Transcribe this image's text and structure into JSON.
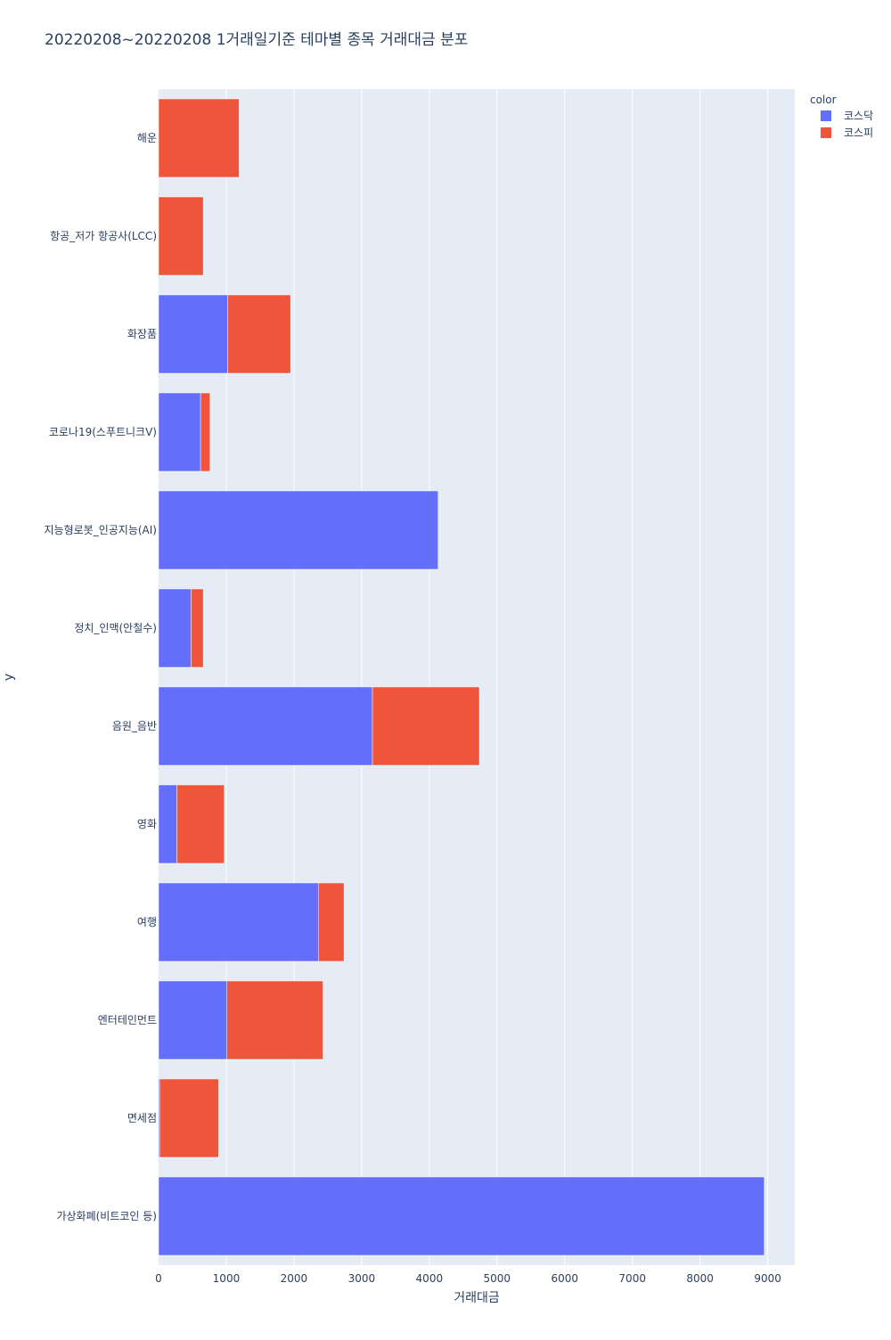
{
  "chart_data": {
    "type": "bar",
    "orientation": "horizontal",
    "barmode": "stack",
    "title": "20220208~20220208 1거래일기준 테마별 종목 거래대금 분포",
    "xlabel": "거래대금",
    "ylabel": "y",
    "xlim": [
      0,
      9400
    ],
    "x_ticks": [
      "0",
      "1000",
      "2000",
      "3000",
      "4000",
      "5000",
      "6000",
      "7000",
      "8000",
      "9000"
    ],
    "categories": [
      "해운",
      "항공_저가 항공사(LCC)",
      "화장품",
      "코로나19(스푸트니크V)",
      "지능형로봇_인공지능(AI)",
      "정치_인맥(안철수)",
      "음원_음반",
      "영화",
      "여행",
      "엔터테인먼트",
      "면세점",
      "가상화폐(비트코인 등)"
    ],
    "series": [
      {
        "name": "코스닥",
        "color": "#636efa",
        "values": [
          0,
          0,
          1020,
          620,
          4130,
          480,
          3160,
          270,
          2360,
          1010,
          15,
          8950
        ]
      },
      {
        "name": "코스피",
        "color": "#ef553b",
        "values": [
          1190,
          660,
          930,
          140,
          0,
          180,
          1580,
          700,
          380,
          1420,
          870,
          0
        ]
      }
    ],
    "legend": {
      "title": "color",
      "position": "top-right"
    },
    "grid": true
  }
}
